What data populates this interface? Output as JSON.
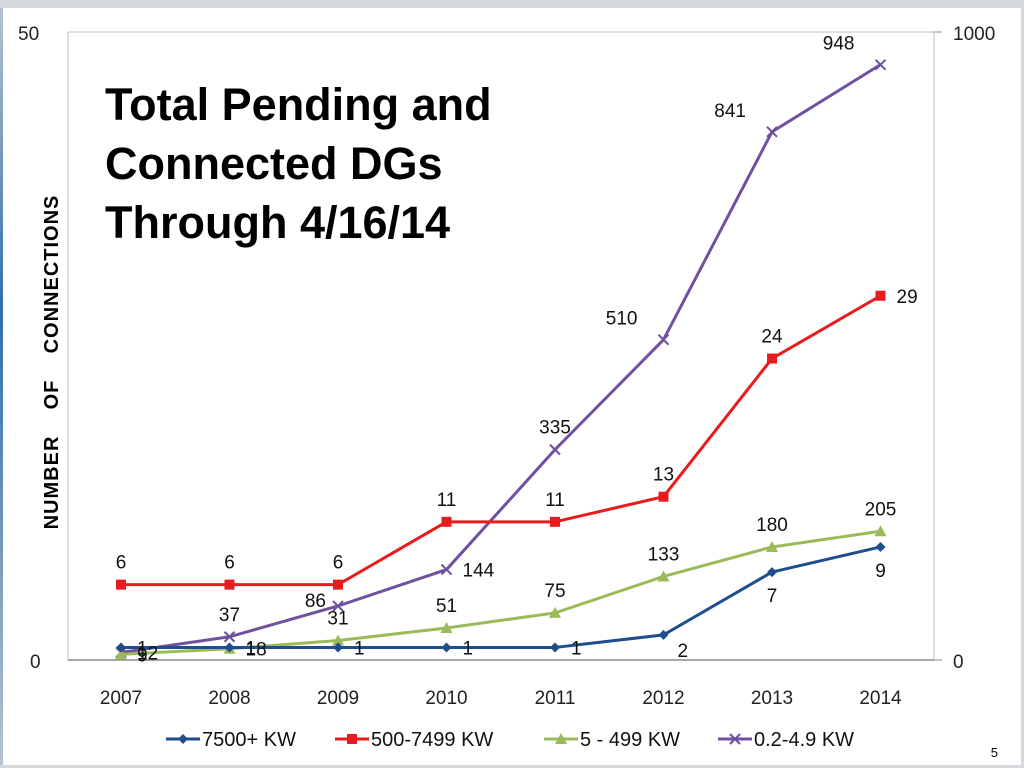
{
  "slide": {
    "number": "5"
  },
  "chart_data": {
    "type": "line",
    "title_lines": [
      "Total Pending and",
      "Connected DGs",
      "Through 4/16/14"
    ],
    "ylabel": "NUMBER    OF    CONNECTIONS",
    "categories": [
      "2007",
      "2008",
      "2009",
      "2010",
      "2011",
      "2012",
      "2013",
      "2014"
    ],
    "y_left": {
      "ticks": [
        "50",
        "0"
      ],
      "range": [
        0,
        50
      ]
    },
    "y_right": {
      "ticks": [
        "1000",
        "0"
      ],
      "range": [
        0,
        1000
      ]
    },
    "grid": false,
    "legend_position": "bottom",
    "series": [
      {
        "name": "7500+ KW",
        "axis": "left",
        "color": "#1f4e8c",
        "marker": "diamond",
        "values": [
          1,
          1,
          1,
          1,
          1,
          2,
          7,
          9
        ],
        "labels": [
          "1",
          "1",
          "1",
          "1",
          "1",
          "2",
          "7",
          "9"
        ],
        "label_pos": [
          "right",
          "right",
          "right",
          "right",
          "right",
          "below-right",
          "below",
          "below"
        ]
      },
      {
        "name": "500-7499 KW",
        "axis": "left",
        "color": "#e81c1c",
        "marker": "square",
        "values": [
          6,
          6,
          6,
          11,
          11,
          13,
          24,
          29
        ],
        "labels": [
          "6",
          "6",
          "6",
          "11",
          "11",
          "13",
          "24",
          "29"
        ],
        "label_pos": [
          "above",
          "above",
          "above",
          "above",
          "above",
          "above",
          "above",
          "right"
        ]
      },
      {
        "name": "5 - 499 KW",
        "axis": "right",
        "color": "#9bbb59",
        "marker": "triangle",
        "values": [
          9,
          18,
          31,
          51,
          75,
          133,
          180,
          205
        ],
        "labels": [
          "9",
          "18",
          "31",
          "51",
          "75",
          "133",
          "180",
          "205"
        ],
        "label_pos": [
          "right",
          "right",
          "above",
          "above",
          "above",
          "above",
          "above",
          "above"
        ]
      },
      {
        "name": "0.2-4.9 KW",
        "axis": "right",
        "color": "#7050a0",
        "marker": "x",
        "values": [
          12,
          37,
          86,
          144,
          335,
          510,
          841,
          948
        ],
        "labels": [
          "12",
          "37",
          "86",
          "144",
          "335",
          "510",
          "841",
          "948"
        ],
        "label_pos": [
          "right",
          "above",
          "left",
          "right",
          "above",
          "above-left",
          "above-left",
          "above-left"
        ]
      }
    ]
  }
}
